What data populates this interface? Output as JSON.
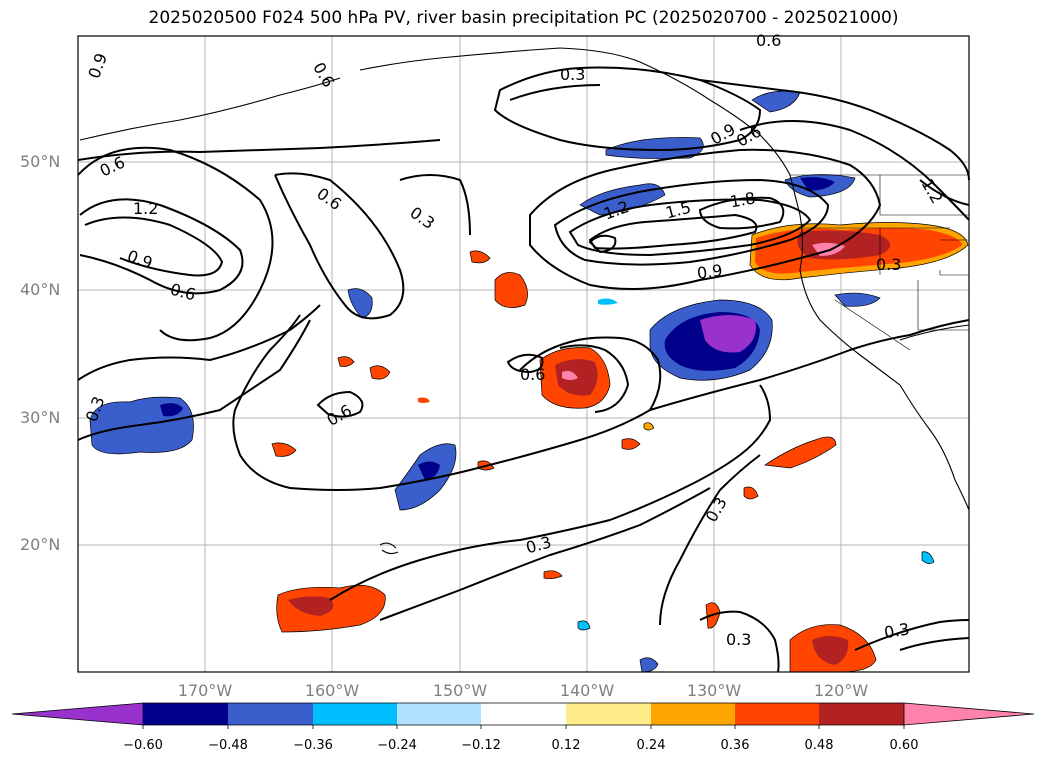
{
  "title": "2025020500 F024 500 hPa PV, river basin precipitation PC (2025020700 - 2025021000)",
  "lat_labels": [
    "50°N",
    "40°N",
    "30°N",
    "20°N"
  ],
  "lon_labels": [
    "170°W",
    "160°W",
    "150°W",
    "140°W",
    "130°W",
    "120°W"
  ],
  "contour_labels": [
    "0.9",
    "0.6",
    "1.2",
    "0.9",
    "0.6",
    "0.6",
    "0.3",
    "0.3",
    "0.6",
    "0.3",
    "0.6",
    "1.2",
    "1.5",
    "1.8",
    "0.9",
    "0.3",
    "0.6",
    "0.3",
    "0.3",
    "0.3",
    "0.3",
    "0.6",
    "0.6",
    "0.9",
    "1.2"
  ],
  "colorbar": {
    "ticks": [
      "−0.60",
      "−0.48",
      "−0.36",
      "−0.24",
      "−0.12",
      "0.12",
      "0.24",
      "0.36",
      "0.48",
      "0.60"
    ],
    "colors": [
      "#9932cc",
      "#00008b",
      "#3a5fcd",
      "#00bfff",
      "#b0e2ff",
      "#ffffff",
      "#ffec8b",
      "#ffa500",
      "#ff4500",
      "#b22222",
      "#ff82ab"
    ]
  }
}
